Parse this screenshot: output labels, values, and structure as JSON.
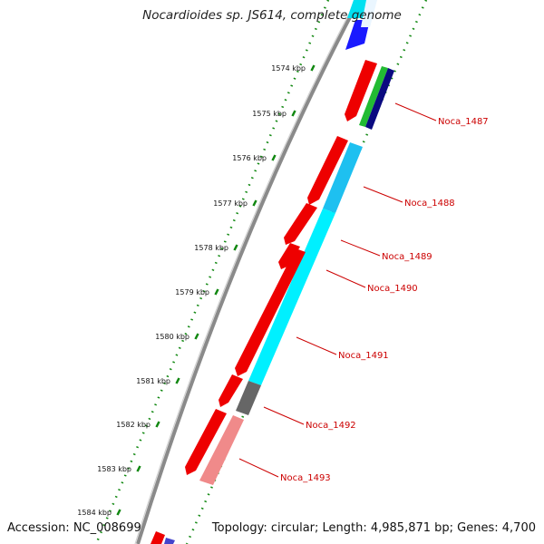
{
  "title": "Nocardioides sp. JS614, complete genome",
  "accession": "Accession: NC_008699",
  "topology": "Topology: circular; Length: 4,985,871 bp; Genes: 4,700",
  "ticks": [
    {
      "label": "1574 kbp"
    },
    {
      "label": "1575 kbp"
    },
    {
      "label": "1576 kbp"
    },
    {
      "label": "1577 kbp"
    },
    {
      "label": "1578 kbp"
    },
    {
      "label": "1579 kbp"
    },
    {
      "label": "1580 kbp"
    },
    {
      "label": "1581 kbp"
    },
    {
      "label": "1582 kbp"
    },
    {
      "label": "1583 kbp"
    },
    {
      "label": "1584 kbp"
    }
  ],
  "gene_labels": [
    {
      "label": "Noca_1487"
    },
    {
      "label": "Noca_1488"
    },
    {
      "label": "Noca_1489"
    },
    {
      "label": "Noca_1490"
    },
    {
      "label": "Noca_1491"
    },
    {
      "label": "Noca_1492"
    },
    {
      "label": "Noca_1493"
    }
  ],
  "colors": {
    "cds": "#ee0000",
    "pale_cds": "#f08a8a",
    "cyan": "#00e0f0",
    "blue": "#1a1aff",
    "navy": "#0a0a80",
    "green": "#22bb33",
    "grey": "#666666",
    "label": "#cc0000",
    "dots": "#118811"
  }
}
